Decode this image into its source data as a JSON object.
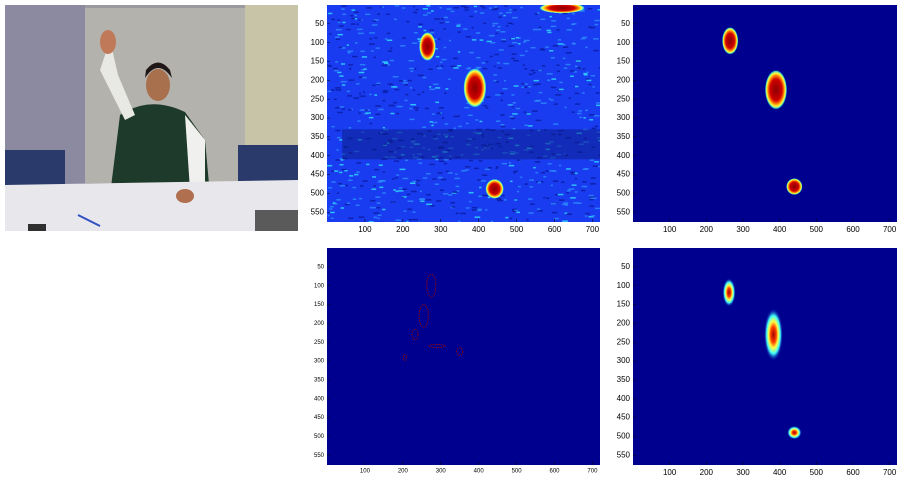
{
  "chart_data": [
    {
      "type": "heatmap",
      "xlim": [
        0,
        720
      ],
      "ylim": [
        0,
        576
      ],
      "xticks": [
        100,
        200,
        300,
        400,
        500,
        600,
        700
      ],
      "yticks": [
        50,
        100,
        150,
        200,
        250,
        300,
        350,
        400,
        450,
        500,
        550
      ]
    },
    {
      "type": "heatmap",
      "xlim": [
        0,
        720
      ],
      "ylim": [
        0,
        576
      ],
      "xticks": [
        100,
        200,
        300,
        400,
        500,
        600,
        700
      ],
      "yticks": [
        50,
        100,
        150,
        200,
        250,
        300,
        350,
        400,
        450,
        500,
        550
      ]
    },
    {
      "type": "heatmap",
      "xlim": [
        0,
        720
      ],
      "ylim": [
        0,
        576
      ],
      "xticks": [
        100,
        200,
        300,
        400,
        500,
        600,
        700
      ],
      "yticks": [
        50,
        100,
        150,
        200,
        250,
        300,
        350,
        400,
        450,
        500,
        550
      ]
    },
    {
      "type": "heatmap",
      "xlim": [
        0,
        720
      ],
      "ylim": [
        0,
        576
      ],
      "xticks": [
        100,
        200,
        300,
        400,
        500,
        600,
        700
      ],
      "yticks": [
        50,
        100,
        150,
        200,
        250,
        300,
        350,
        400,
        450,
        500,
        550
      ]
    }
  ]
}
